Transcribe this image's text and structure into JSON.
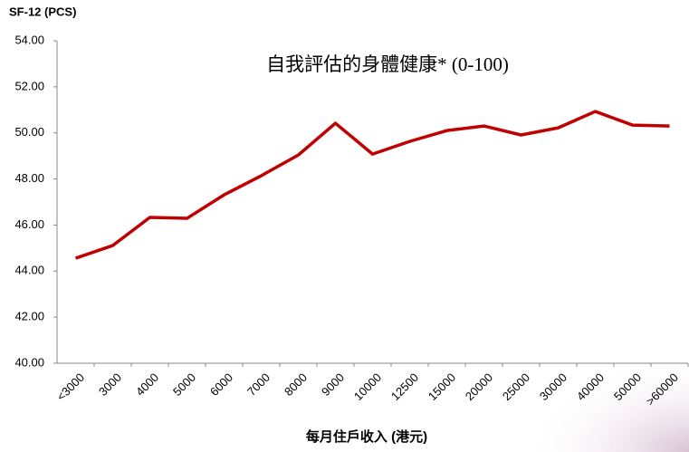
{
  "chart_data": {
    "type": "line",
    "title": "自我評估的身體健康* (0-100)",
    "y_label": "SF-12 (PCS)",
    "x_label": "每月住戶收入 (港元)",
    "categories": [
      "<3000",
      "3000",
      "4000",
      "5000",
      "6000",
      "7000",
      "8000",
      "9000",
      "10000",
      "12500",
      "15000",
      "20000",
      "25000",
      "30000",
      "40000",
      "50000",
      ">60000"
    ],
    "series": [
      {
        "color": "#c00000",
        "values": [
          44.56,
          45.11,
          46.33,
          46.29,
          47.31,
          48.14,
          49.04,
          50.42,
          49.08,
          49.63,
          50.1,
          50.3,
          49.91,
          50.22,
          50.93,
          50.34,
          50.3
        ]
      }
    ],
    "ylim": [
      40,
      54
    ],
    "yticks": [
      {
        "value": 40,
        "label": "40.00"
      },
      {
        "value": 42,
        "label": "42.00"
      },
      {
        "value": 44,
        "label": "44.00"
      },
      {
        "value": 46,
        "label": "46.00"
      },
      {
        "value": 48,
        "label": "48.00"
      },
      {
        "value": 50,
        "label": "50.00"
      },
      {
        "value": 52,
        "label": "52.00"
      },
      {
        "value": 54,
        "label": "54.00"
      }
    ],
    "grid": false
  }
}
